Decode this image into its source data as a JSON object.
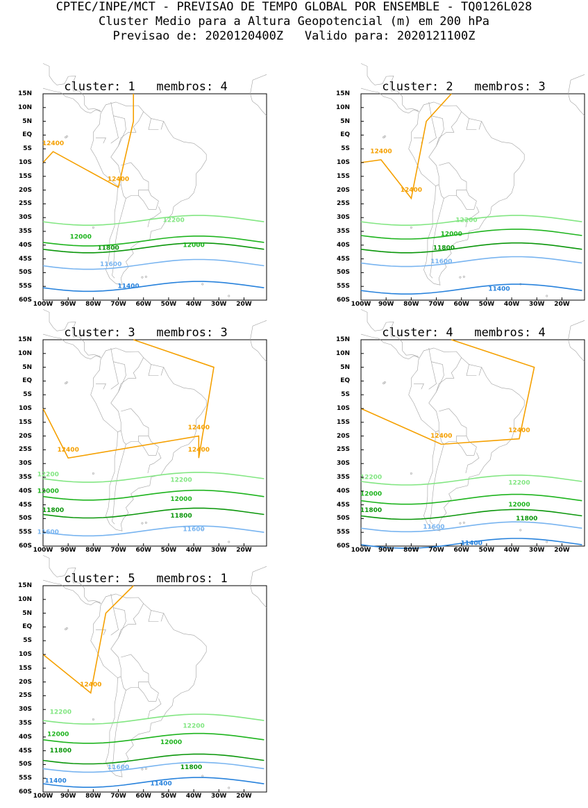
{
  "header": {
    "line1": "CPTEC/INPE/MCT - PREVISAO DE TEMPO GLOBAL POR ENSEMBLE - TQ0126L028",
    "line2": "Cluster Medio para a Altura Geopotencial (m) em 200 hPa",
    "line3": "Previsao de: 2020120400Z   Valido para: 2020121100Z"
  },
  "axes": {
    "y_labels": [
      "15N",
      "10N",
      "5N",
      "EQ",
      "5S",
      "10S",
      "15S",
      "20S",
      "25S",
      "30S",
      "35S",
      "40S",
      "45S",
      "50S",
      "55S",
      "60S"
    ],
    "x_labels": [
      "100W",
      "90W",
      "80W",
      "70W",
      "60W",
      "50W",
      "40W",
      "30W",
      "20W"
    ]
  },
  "colors": {
    "12400": "#f5a000",
    "12200": "#82e682",
    "12000": "#1eb41e",
    "11800": "#0a960a",
    "11600": "#78b4f0",
    "11400": "#2882dc",
    "coast": "#a0a0a0"
  },
  "panels": [
    {
      "title": "cluster: 1   membros: 4",
      "contours": [
        {
          "level": "12400",
          "color_key": "12400",
          "labels": [
            {
              "text": "12400",
              "lon": -96,
              "lat": -3
            },
            {
              "text": "12400",
              "lon": -70,
              "lat": -16
            }
          ]
        },
        {
          "level": "12200",
          "color_key": "12200",
          "labels": [
            {
              "text": "12200",
              "lon": -48,
              "lat": -31
            }
          ]
        },
        {
          "level": "12000",
          "color_key": "12000",
          "labels": [
            {
              "text": "12000",
              "lon": -85,
              "lat": -37
            },
            {
              "text": "12000",
              "lon": -40,
              "lat": -40
            }
          ]
        },
        {
          "level": "11800",
          "color_key": "11800",
          "labels": [
            {
              "text": "11800",
              "lon": -74,
              "lat": -41
            }
          ]
        },
        {
          "level": "11600",
          "color_key": "11600",
          "labels": [
            {
              "text": "11600",
              "lon": -73,
              "lat": -47
            }
          ]
        },
        {
          "level": "11400",
          "color_key": "11400",
          "labels": [
            {
              "text": "11400",
              "lon": -66,
              "lat": -55
            }
          ]
        }
      ]
    },
    {
      "title": "cluster: 2   membros: 3",
      "contours": [
        {
          "level": "12400",
          "color_key": "12400",
          "labels": [
            {
              "text": "12400",
              "lon": -92,
              "lat": -6
            },
            {
              "text": "12400",
              "lon": -80,
              "lat": -20
            }
          ]
        },
        {
          "level": "12200",
          "color_key": "12200",
          "labels": [
            {
              "text": "12200",
              "lon": -58,
              "lat": -31
            }
          ]
        },
        {
          "level": "12000",
          "color_key": "12000",
          "labels": [
            {
              "text": "12000",
              "lon": -64,
              "lat": -36
            }
          ]
        },
        {
          "level": "11800",
          "color_key": "11800",
          "labels": [
            {
              "text": "11800",
              "lon": -67,
              "lat": -41
            }
          ]
        },
        {
          "level": "11600",
          "color_key": "11600",
          "labels": [
            {
              "text": "11600",
              "lon": -68,
              "lat": -46
            }
          ]
        },
        {
          "level": "11400",
          "color_key": "11400",
          "labels": [
            {
              "text": "11400",
              "lon": -45,
              "lat": -56
            }
          ]
        }
      ]
    },
    {
      "title": "cluster: 3   membros: 3",
      "contours": [
        {
          "level": "12400",
          "color_key": "12400",
          "labels": [
            {
              "text": "12400",
              "lon": -38,
              "lat": -17
            },
            {
              "text": "12400",
              "lon": -90,
              "lat": -25
            },
            {
              "text": "12400",
              "lon": -38,
              "lat": -25
            }
          ]
        },
        {
          "level": "12200",
          "color_key": "12200",
          "labels": [
            {
              "text": "12200",
              "lon": -98,
              "lat": -34
            },
            {
              "text": "12200",
              "lon": -45,
              "lat": -36
            }
          ]
        },
        {
          "level": "12000",
          "color_key": "12000",
          "labels": [
            {
              "text": "12000",
              "lon": -98,
              "lat": -40
            },
            {
              "text": "12000",
              "lon": -45,
              "lat": -43
            }
          ]
        },
        {
          "level": "11800",
          "color_key": "11800",
          "labels": [
            {
              "text": "11800",
              "lon": -96,
              "lat": -47
            },
            {
              "text": "11800",
              "lon": -45,
              "lat": -49
            }
          ]
        },
        {
          "level": "11600",
          "color_key": "11600",
          "labels": [
            {
              "text": "11600",
              "lon": -98,
              "lat": -55
            },
            {
              "text": "11600",
              "lon": -40,
              "lat": -54
            }
          ]
        }
      ]
    },
    {
      "title": "cluster: 4   membros: 4",
      "contours": [
        {
          "level": "12400",
          "color_key": "12400",
          "labels": [
            {
              "text": "12400",
              "lon": -68,
              "lat": -20
            },
            {
              "text": "12400",
              "lon": -37,
              "lat": -18
            }
          ]
        },
        {
          "level": "12200",
          "color_key": "12200",
          "labels": [
            {
              "text": "12200",
              "lon": -96,
              "lat": -35
            },
            {
              "text": "12200",
              "lon": -37,
              "lat": -37
            }
          ]
        },
        {
          "level": "12000",
          "color_key": "12000",
          "labels": [
            {
              "text": "12000",
              "lon": -96,
              "lat": -41
            },
            {
              "text": "12000",
              "lon": -37,
              "lat": -45
            }
          ]
        },
        {
          "level": "11800",
          "color_key": "11800",
          "labels": [
            {
              "text": "11800",
              "lon": -96,
              "lat": -47
            },
            {
              "text": "11800",
              "lon": -34,
              "lat": -50
            }
          ]
        },
        {
          "level": "11600",
          "color_key": "11600",
          "labels": [
            {
              "text": "11600",
              "lon": -71,
              "lat": -53
            }
          ]
        },
        {
          "level": "11400",
          "color_key": "11400",
          "labels": [
            {
              "text": "11400",
              "lon": -56,
              "lat": -59
            }
          ]
        }
      ]
    },
    {
      "title": "cluster: 5   membros: 1",
      "contours": [
        {
          "level": "12400",
          "color_key": "12400",
          "labels": [
            {
              "text": "12400",
              "lon": -81,
              "lat": -21
            }
          ]
        },
        {
          "level": "12200",
          "color_key": "12200",
          "labels": [
            {
              "text": "12200",
              "lon": -93,
              "lat": -31
            },
            {
              "text": "12200",
              "lon": -40,
              "lat": -36
            }
          ]
        },
        {
          "level": "12000",
          "color_key": "12000",
          "labels": [
            {
              "text": "12000",
              "lon": -94,
              "lat": -39
            },
            {
              "text": "12000",
              "lon": -49,
              "lat": -42
            }
          ]
        },
        {
          "level": "11800",
          "color_key": "11800",
          "labels": [
            {
              "text": "11800",
              "lon": -93,
              "lat": -45
            },
            {
              "text": "11800",
              "lon": -41,
              "lat": -51
            }
          ]
        },
        {
          "level": "11600",
          "color_key": "11600",
          "labels": [
            {
              "text": "11600",
              "lon": -70,
              "lat": -51
            }
          ]
        },
        {
          "level": "11400",
          "color_key": "11400",
          "labels": [
            {
              "text": "11400",
              "lon": -95,
              "lat": -56
            },
            {
              "text": "11400",
              "lon": -53,
              "lat": -57
            }
          ]
        }
      ]
    }
  ]
}
